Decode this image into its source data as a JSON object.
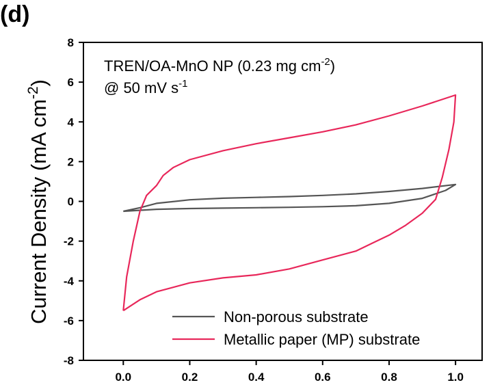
{
  "panel_label": "(d)",
  "chart_data": {
    "type": "line",
    "title": "",
    "annotation": {
      "line1_main": "TREN/OA-MnO NP (0.23 mg cm",
      "line1_sup": "-2",
      "line1_end": ")",
      "line2_main": "@ 50 mV s",
      "line2_sup": "-1"
    },
    "xlabel": "",
    "ylabel_main": "Current Density (mA cm",
    "ylabel_sup": "-2",
    "ylabel_end": ")",
    "xlim": [
      -0.12,
      1.08
    ],
    "ylim": [
      -8,
      8
    ],
    "x_ticks": [
      0.0,
      0.2,
      0.4,
      0.6,
      0.8,
      1.0
    ],
    "x_tick_labels": [
      "0.0",
      "0.2",
      "0.4",
      "0.6",
      "0.8",
      "1.0"
    ],
    "y_ticks": [
      -8,
      -6,
      -4,
      -2,
      0,
      2,
      4,
      6,
      8
    ],
    "y_tick_labels": [
      "-8",
      "-6",
      "-4",
      "-2",
      "0",
      "2",
      "4",
      "6",
      "8"
    ],
    "grid": false,
    "legend_position": "bottom-right",
    "series": [
      {
        "name": "Non-porous substrate",
        "color": "#555555",
        "points": [
          [
            0.0,
            -0.5
          ],
          [
            0.05,
            -0.32
          ],
          [
            0.1,
            -0.1
          ],
          [
            0.2,
            0.08
          ],
          [
            0.3,
            0.16
          ],
          [
            0.4,
            0.2
          ],
          [
            0.5,
            0.24
          ],
          [
            0.6,
            0.3
          ],
          [
            0.7,
            0.38
          ],
          [
            0.8,
            0.5
          ],
          [
            0.9,
            0.65
          ],
          [
            1.0,
            0.85
          ],
          [
            0.97,
            0.55
          ],
          [
            0.9,
            0.15
          ],
          [
            0.8,
            -0.1
          ],
          [
            0.7,
            -0.22
          ],
          [
            0.6,
            -0.27
          ],
          [
            0.5,
            -0.3
          ],
          [
            0.4,
            -0.32
          ],
          [
            0.3,
            -0.34
          ],
          [
            0.2,
            -0.36
          ],
          [
            0.1,
            -0.4
          ],
          [
            0.0,
            -0.5
          ]
        ]
      },
      {
        "name": "Metallic paper (MP) substrate",
        "color": "#e8275a",
        "points": [
          [
            0.0,
            -5.5
          ],
          [
            0.01,
            -3.8
          ],
          [
            0.03,
            -2.0
          ],
          [
            0.05,
            -0.5
          ],
          [
            0.07,
            0.3
          ],
          [
            0.1,
            0.8
          ],
          [
            0.12,
            1.3
          ],
          [
            0.15,
            1.7
          ],
          [
            0.2,
            2.1
          ],
          [
            0.3,
            2.55
          ],
          [
            0.4,
            2.9
          ],
          [
            0.5,
            3.2
          ],
          [
            0.6,
            3.5
          ],
          [
            0.7,
            3.85
          ],
          [
            0.8,
            4.3
          ],
          [
            0.9,
            4.8
          ],
          [
            1.0,
            5.35
          ],
          [
            0.995,
            4.0
          ],
          [
            0.98,
            2.6
          ],
          [
            0.96,
            1.2
          ],
          [
            0.94,
            0.1
          ],
          [
            0.9,
            -0.6
          ],
          [
            0.85,
            -1.2
          ],
          [
            0.8,
            -1.7
          ],
          [
            0.75,
            -2.1
          ],
          [
            0.7,
            -2.5
          ],
          [
            0.6,
            -2.95
          ],
          [
            0.5,
            -3.4
          ],
          [
            0.4,
            -3.7
          ],
          [
            0.3,
            -3.85
          ],
          [
            0.2,
            -4.1
          ],
          [
            0.1,
            -4.55
          ],
          [
            0.05,
            -4.95
          ],
          [
            0.0,
            -5.5
          ]
        ]
      }
    ]
  }
}
